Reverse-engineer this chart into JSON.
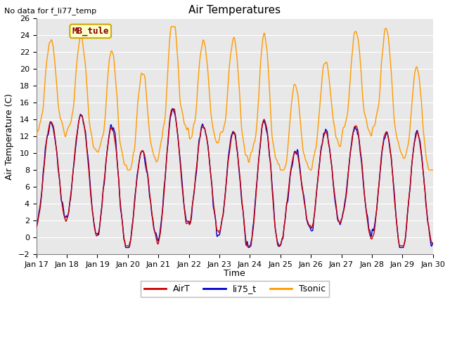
{
  "title": "Air Temperatures",
  "subtitle": "No data for f_li77_temp",
  "xlabel": "Time",
  "ylabel": "Air Temperature (C)",
  "ylim": [
    -2,
    26
  ],
  "yticks": [
    -2,
    0,
    2,
    4,
    6,
    8,
    10,
    12,
    14,
    16,
    18,
    20,
    22,
    24,
    26
  ],
  "x_labels": [
    "Jan 17",
    "Jan 18",
    "Jan 19",
    "Jan 20",
    "Jan 21",
    "Jan 22",
    "Jan 23",
    "Jan 24",
    "Jan 25",
    "Jan 26",
    "Jan 27",
    "Jan 28",
    "Jan 29",
    "Jan 30"
  ],
  "colors": {
    "AirT": "#cc0000",
    "li75_t": "#0000cc",
    "Tsonic": "#ff9900",
    "plot_bg": "#e8e8e8",
    "grid": "#ffffff",
    "fig_bg": "#ffffff",
    "annotation_box_bg": "#ffffcc",
    "annotation_box_edge": "#ccaa00",
    "annotation_text": "#880000"
  },
  "legend_labels": [
    "AirT",
    "li75_t",
    "Tsonic"
  ],
  "annotation_text": "MB_tule",
  "days": 13,
  "points_per_day": 96
}
